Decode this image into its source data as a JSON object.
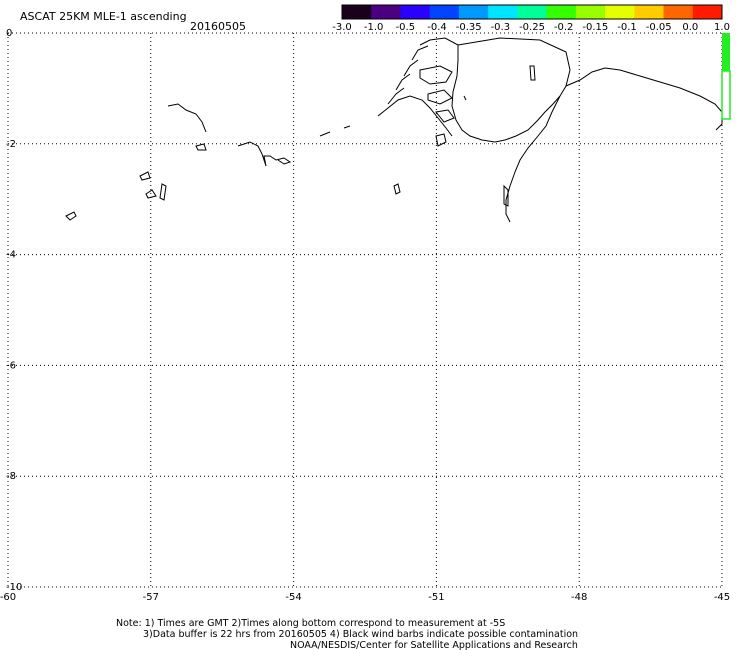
{
  "header": {
    "title": "ASCAT 25KM MLE-1 ascending",
    "date": "20160505"
  },
  "colorbar": {
    "labels": [
      "-3.0",
      "-1.0",
      "-0.5",
      "-0.4",
      "-0.35",
      "-0.3",
      "-0.25",
      "-0.2",
      "-0.15",
      "-0.1",
      "-0.05",
      "0.0",
      "1.0"
    ],
    "colors": [
      "#1a001a",
      "#4b0082",
      "#2a00ff",
      "#0044ff",
      "#0099ff",
      "#00e5ff",
      "#00ff99",
      "#33ff00",
      "#99ff00",
      "#e6ff00",
      "#ffcc00",
      "#ff6600",
      "#ff1a00"
    ]
  },
  "map": {
    "x_ticks": [
      "-60",
      "-57",
      "-54",
      "-51",
      "-48",
      "-45"
    ],
    "y_ticks": [
      "0",
      "-2",
      "-4",
      "-6",
      "-8",
      "-10"
    ],
    "lon_range": [
      -60,
      -45
    ],
    "lat_range": [
      -10,
      0
    ],
    "grid": "dotted",
    "data_patch_color": "#22ee22"
  },
  "footer": {
    "line1": "Note: 1) Times are GMT 2)Times along bottom correspond to measurement at -5S",
    "line2": "3)Data buffer is 22 hrs from 20160505 4) Black wind barbs indicate possible contamination",
    "line3": "NOAA/NESDIS/Center for Satellite Applications and Research"
  }
}
